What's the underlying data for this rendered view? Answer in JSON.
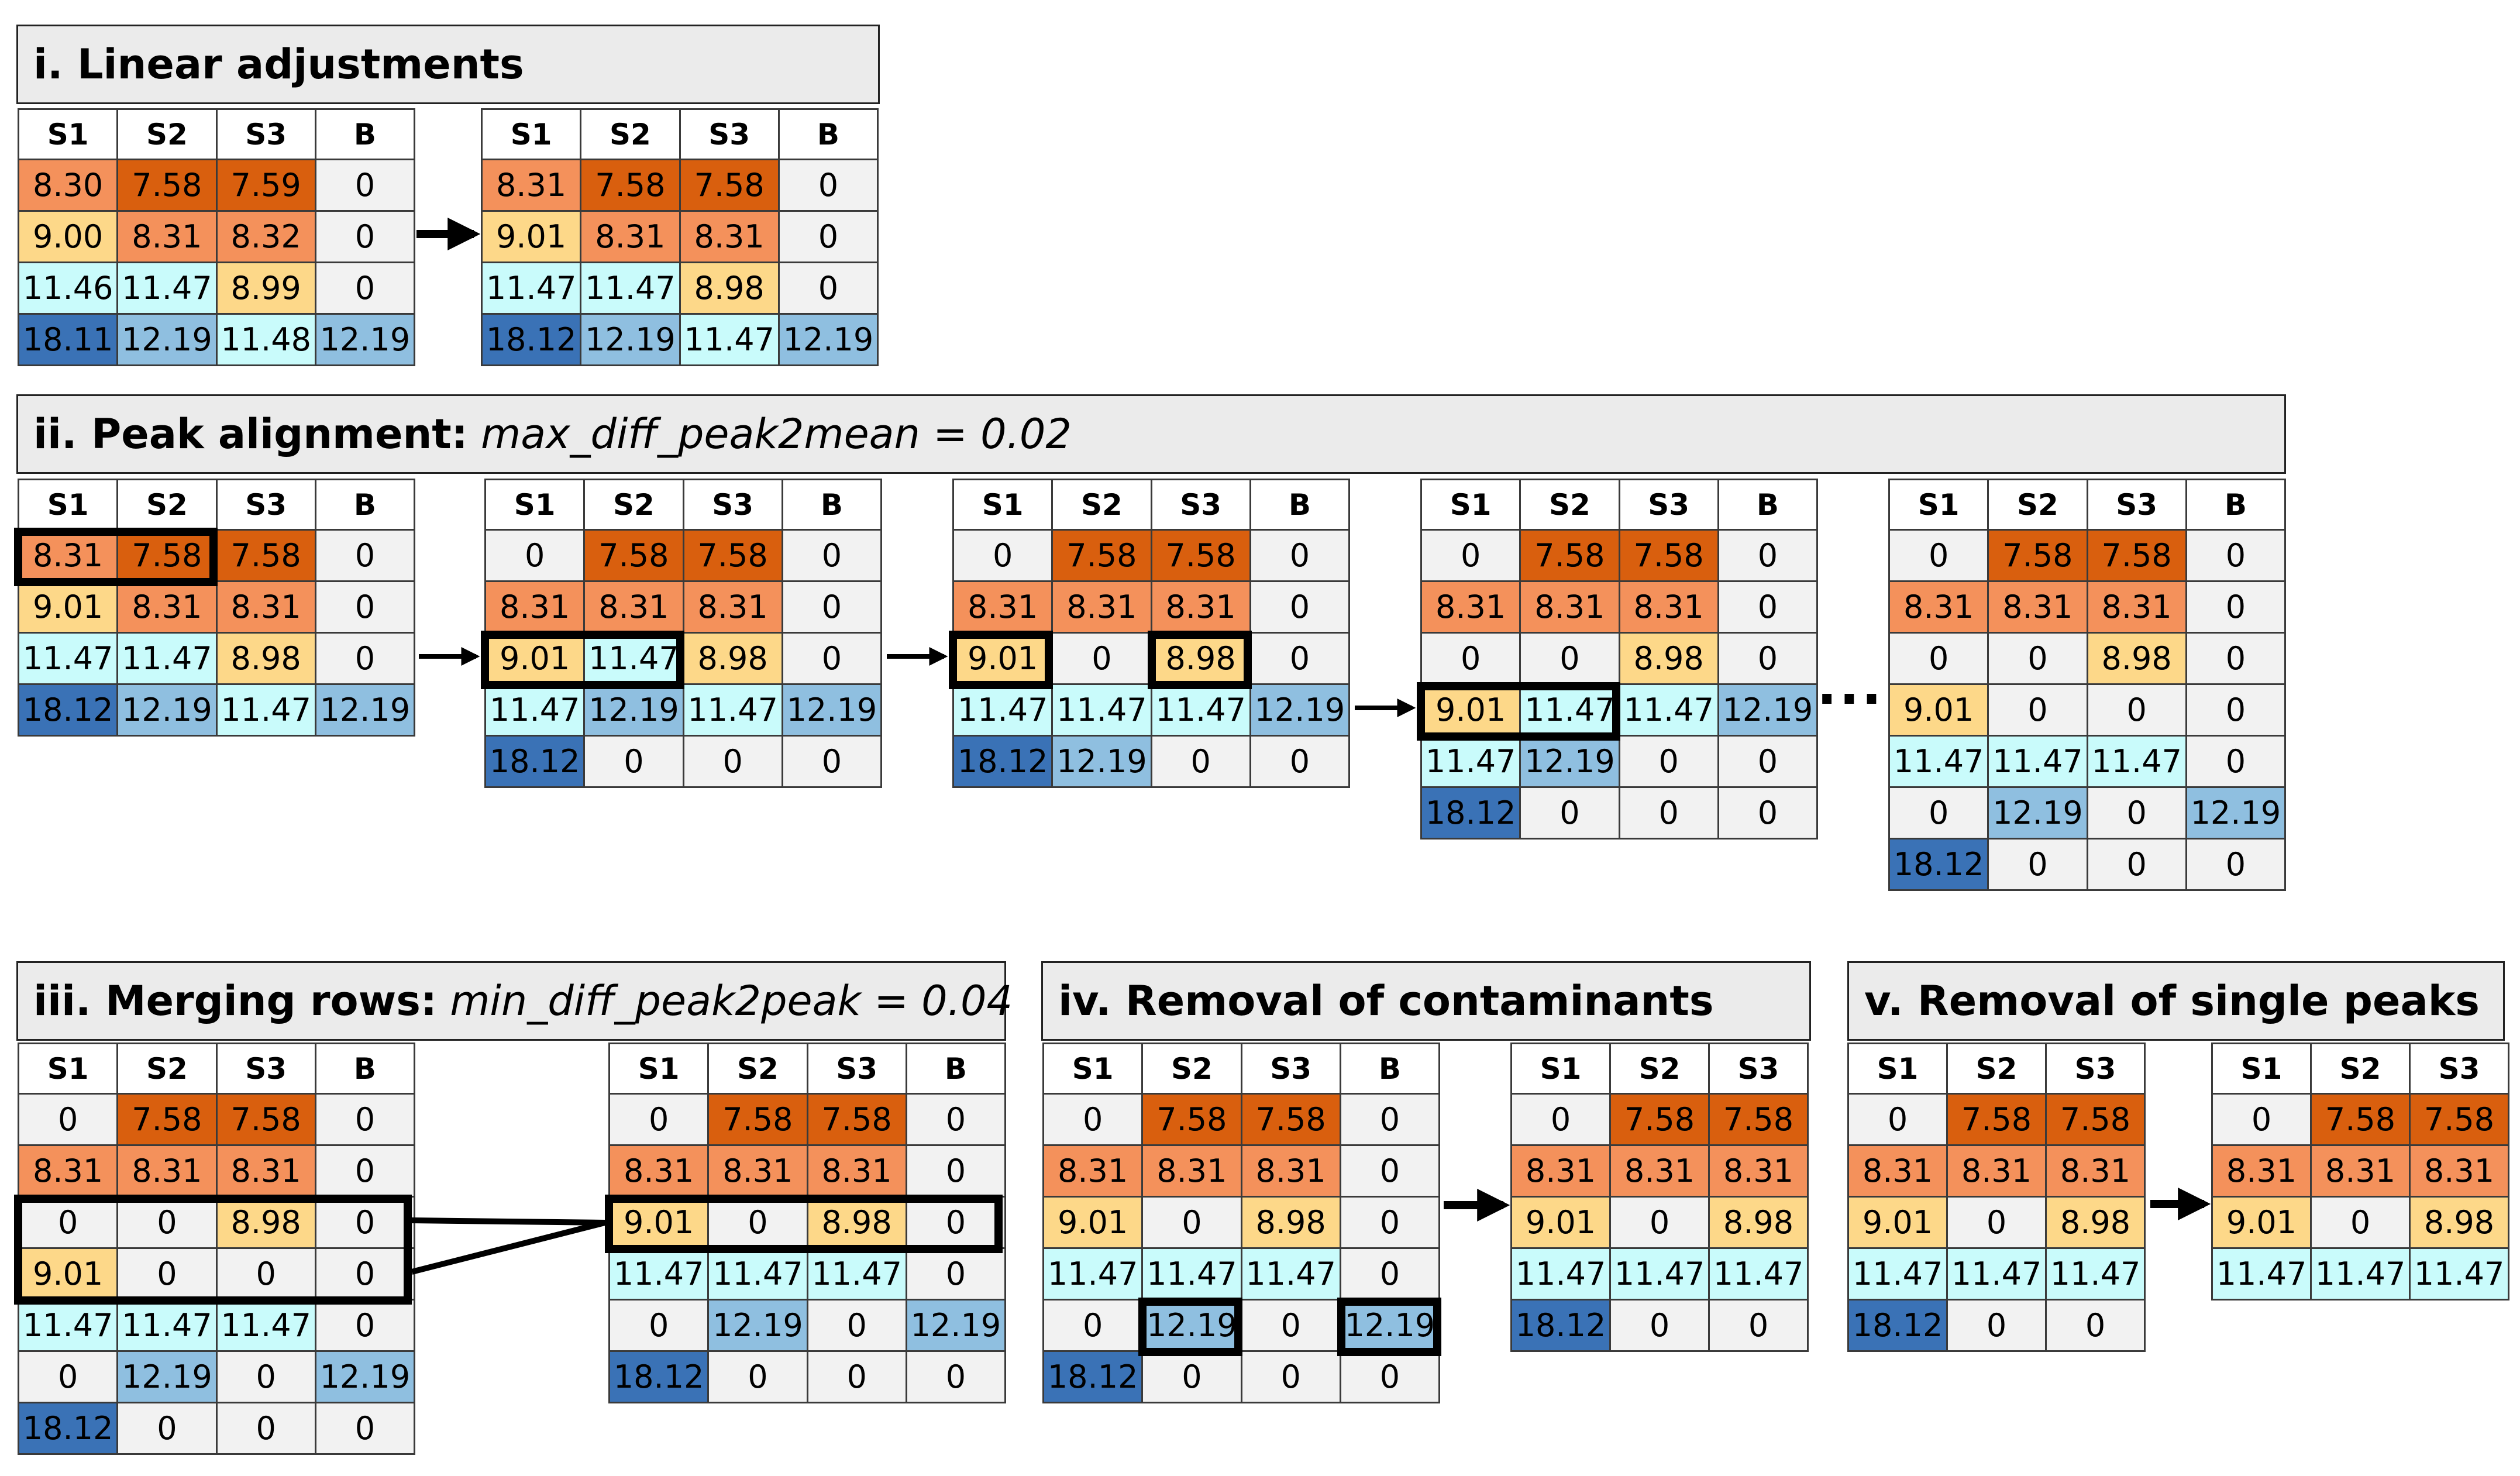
{
  "headers4": [
    "S1",
    "S2",
    "S3",
    "B"
  ],
  "headers3": [
    "S1",
    "S2",
    "S3"
  ],
  "ellipsis": "...",
  "sections": {
    "i": {
      "prefix": "i. Linear adjustments",
      "param": ""
    },
    "ii": {
      "prefix": "ii. Peak alignment:",
      "param": "max_diff_peak2mean = 0.02"
    },
    "iii": {
      "prefix": "iii. Merging rows:",
      "param": "min_diff_peak2peak = 0.04"
    },
    "iv": {
      "prefix": "iv. Removal of contaminants",
      "param": ""
    },
    "v": {
      "prefix": "v. Removal of single peaks",
      "param": ""
    }
  },
  "tables": {
    "t1": [
      [
        "8.30",
        "7.58",
        "7.59",
        "0"
      ],
      [
        "9.00",
        "8.31",
        "8.32",
        "0"
      ],
      [
        "11.46",
        "11.47",
        "8.99",
        "0"
      ],
      [
        "18.11",
        "12.19",
        "11.48",
        "12.19"
      ]
    ],
    "t2": [
      [
        "8.31",
        "7.58",
        "7.58",
        "0"
      ],
      [
        "9.01",
        "8.31",
        "8.31",
        "0"
      ],
      [
        "11.47",
        "11.47",
        "8.98",
        "0"
      ],
      [
        "18.12",
        "12.19",
        "11.47",
        "12.19"
      ]
    ],
    "t3": [
      [
        "8.31",
        "7.58",
        "7.58",
        "0"
      ],
      [
        "9.01",
        "8.31",
        "8.31",
        "0"
      ],
      [
        "11.47",
        "11.47",
        "8.98",
        "0"
      ],
      [
        "18.12",
        "12.19",
        "11.47",
        "12.19"
      ]
    ],
    "t4": [
      [
        "0",
        "7.58",
        "7.58",
        "0"
      ],
      [
        "8.31",
        "8.31",
        "8.31",
        "0"
      ],
      [
        "9.01",
        "11.47",
        "8.98",
        "0"
      ],
      [
        "11.47",
        "12.19",
        "11.47",
        "12.19"
      ],
      [
        "18.12",
        "0",
        "0",
        "0"
      ]
    ],
    "t5": [
      [
        "0",
        "7.58",
        "7.58",
        "0"
      ],
      [
        "8.31",
        "8.31",
        "8.31",
        "0"
      ],
      [
        "9.01",
        "0",
        "8.98",
        "0"
      ],
      [
        "11.47",
        "11.47",
        "11.47",
        "12.19"
      ],
      [
        "18.12",
        "12.19",
        "0",
        "0"
      ]
    ],
    "t6": [
      [
        "0",
        "7.58",
        "7.58",
        "0"
      ],
      [
        "8.31",
        "8.31",
        "8.31",
        "0"
      ],
      [
        "0",
        "0",
        "8.98",
        "0"
      ],
      [
        "9.01",
        "11.47",
        "11.47",
        "12.19"
      ],
      [
        "11.47",
        "12.19",
        "0",
        "0"
      ],
      [
        "18.12",
        "0",
        "0",
        "0"
      ]
    ],
    "t7": [
      [
        "0",
        "7.58",
        "7.58",
        "0"
      ],
      [
        "8.31",
        "8.31",
        "8.31",
        "0"
      ],
      [
        "0",
        "0",
        "8.98",
        "0"
      ],
      [
        "9.01",
        "0",
        "0",
        "0"
      ],
      [
        "11.47",
        "11.47",
        "11.47",
        "0"
      ],
      [
        "0",
        "12.19",
        "0",
        "12.19"
      ],
      [
        "18.12",
        "0",
        "0",
        "0"
      ]
    ],
    "t8": [
      [
        "0",
        "7.58",
        "7.58",
        "0"
      ],
      [
        "8.31",
        "8.31",
        "8.31",
        "0"
      ],
      [
        "0",
        "0",
        "8.98",
        "0"
      ],
      [
        "9.01",
        "0",
        "0",
        "0"
      ],
      [
        "11.47",
        "11.47",
        "11.47",
        "0"
      ],
      [
        "0",
        "12.19",
        "0",
        "12.19"
      ],
      [
        "18.12",
        "0",
        "0",
        "0"
      ]
    ],
    "t9": [
      [
        "0",
        "7.58",
        "7.58",
        "0"
      ],
      [
        "8.31",
        "8.31",
        "8.31",
        "0"
      ],
      [
        "9.01",
        "0",
        "8.98",
        "0"
      ],
      [
        "11.47",
        "11.47",
        "11.47",
        "0"
      ],
      [
        "0",
        "12.19",
        "0",
        "12.19"
      ],
      [
        "18.12",
        "0",
        "0",
        "0"
      ]
    ],
    "t10": [
      [
        "0",
        "7.58",
        "7.58",
        "0"
      ],
      [
        "8.31",
        "8.31",
        "8.31",
        "0"
      ],
      [
        "9.01",
        "0",
        "8.98",
        "0"
      ],
      [
        "11.47",
        "11.47",
        "11.47",
        "0"
      ],
      [
        "0",
        "12.19",
        "0",
        "12.19"
      ],
      [
        "18.12",
        "0",
        "0",
        "0"
      ]
    ],
    "t11": [
      [
        "0",
        "7.58",
        "7.58"
      ],
      [
        "8.31",
        "8.31",
        "8.31"
      ],
      [
        "9.01",
        "0",
        "8.98"
      ],
      [
        "11.47",
        "11.47",
        "11.47"
      ],
      [
        "18.12",
        "0",
        "0"
      ]
    ],
    "t12": [
      [
        "0",
        "7.58",
        "7.58"
      ],
      [
        "8.31",
        "8.31",
        "8.31"
      ],
      [
        "9.01",
        "0",
        "8.98"
      ],
      [
        "11.47",
        "11.47",
        "11.47"
      ],
      [
        "18.12",
        "0",
        "0"
      ]
    ],
    "t13": [
      [
        "0",
        "7.58",
        "7.58"
      ],
      [
        "8.31",
        "8.31",
        "8.31"
      ],
      [
        "9.01",
        "0",
        "8.98"
      ],
      [
        "11.47",
        "11.47",
        "11.47"
      ]
    ]
  },
  "colors": {
    "zero": "#f2f2f2",
    "7.58": "#d95f0e",
    "8.31": "#f4915b",
    "9.0": "#fdd889",
    "11.47": "#c9fbfb",
    "12.19": "#8fbfe0",
    "18.12": "#3a72b6"
  }
}
